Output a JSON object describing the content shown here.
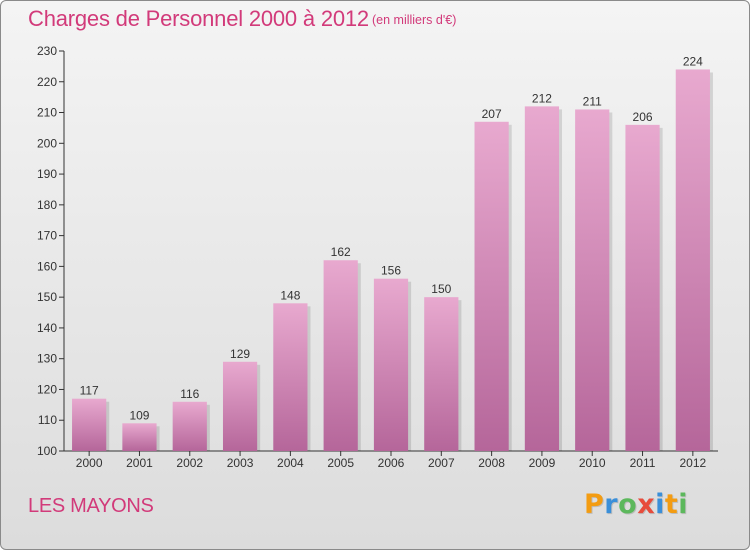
{
  "header": {
    "title": "Charges de Personnel 2000 à 2012",
    "subtitle": "(en milliers d'€)"
  },
  "footer": {
    "commune": "LES MAYONS",
    "logo_letters": [
      "P",
      "r",
      "o",
      "x",
      "i",
      "t",
      "i"
    ]
  },
  "colors": {
    "accent": "#d23a7a",
    "bar_top": "#e8a9cf",
    "bar_bottom": "#b5669a",
    "logo": [
      "#f39c12",
      "#3a8fd9",
      "#5cb85c",
      "#e74c3c",
      "#3a8fd9",
      "#f39c12",
      "#5cb85c"
    ]
  },
  "chart_data": {
    "type": "bar",
    "title": "Charges de Personnel 2000 à 2012",
    "subtitle": "(en milliers d'€)",
    "categories": [
      "2000",
      "2001",
      "2002",
      "2003",
      "2004",
      "2005",
      "2006",
      "2007",
      "2008",
      "2009",
      "2010",
      "2011",
      "2012"
    ],
    "values": [
      117,
      109,
      116,
      129,
      148,
      162,
      156,
      150,
      207,
      212,
      211,
      206,
      224
    ],
    "ylim": [
      100,
      230
    ],
    "yticks": [
      100,
      110,
      120,
      130,
      140,
      150,
      160,
      170,
      180,
      190,
      200,
      210,
      220,
      230
    ],
    "xlabel": "",
    "ylabel": "",
    "grid": false,
    "legend": "none"
  }
}
